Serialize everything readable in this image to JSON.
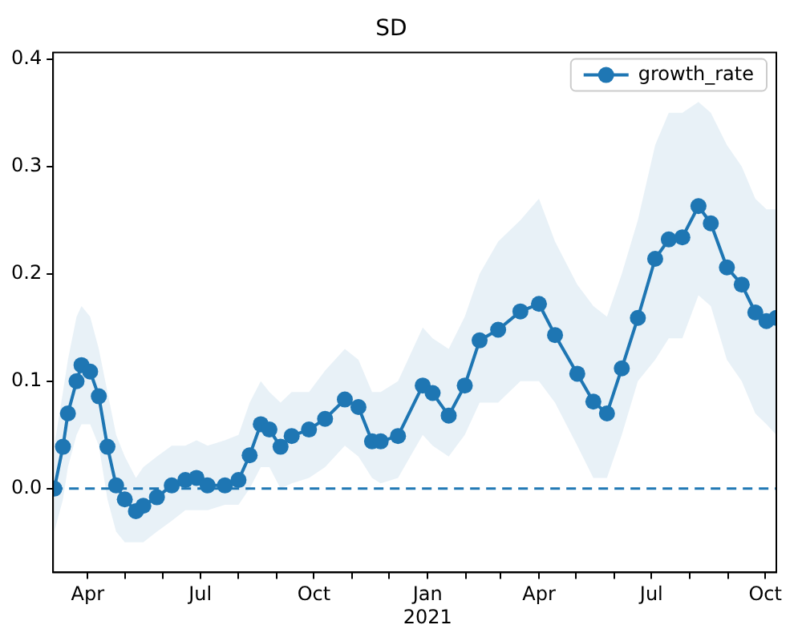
{
  "chart_data": {
    "type": "line",
    "title": "SD",
    "x": [
      "2020-03-05",
      "2020-03-12",
      "2020-03-16",
      "2020-03-23",
      "2020-03-27",
      "2020-04-03",
      "2020-04-10",
      "2020-04-17",
      "2020-04-24",
      "2020-05-01",
      "2020-05-10",
      "2020-05-16",
      "2020-05-27",
      "2020-06-08",
      "2020-06-19",
      "2020-06-28",
      "2020-07-07",
      "2020-07-21",
      "2020-08-01",
      "2020-08-10",
      "2020-08-19",
      "2020-08-26",
      "2020-09-04",
      "2020-09-13",
      "2020-09-27",
      "2020-10-10",
      "2020-10-26",
      "2020-11-06",
      "2020-11-17",
      "2020-11-24",
      "2020-12-08",
      "2020-12-28",
      "2021-01-05",
      "2021-01-18",
      "2021-01-31",
      "2021-02-12",
      "2021-02-27",
      "2021-03-17",
      "2021-04-01",
      "2021-04-14",
      "2021-05-02",
      "2021-05-15",
      "2021-05-26",
      "2021-06-07",
      "2021-06-20",
      "2021-07-04",
      "2021-07-15",
      "2021-07-26",
      "2021-08-08",
      "2021-08-18",
      "2021-08-31",
      "2021-09-12",
      "2021-09-23",
      "2021-10-02",
      "2021-10-10"
    ],
    "series": [
      {
        "name": "growth_rate",
        "color": "#1f77b4",
        "values": [
          0.0,
          0.039,
          0.07,
          0.1,
          0.115,
          0.109,
          0.086,
          0.039,
          0.003,
          -0.01,
          -0.021,
          -0.016,
          -0.008,
          0.003,
          0.008,
          0.01,
          0.003,
          0.003,
          0.008,
          0.031,
          0.06,
          0.055,
          0.039,
          0.049,
          0.055,
          0.065,
          0.083,
          0.076,
          0.044,
          0.044,
          0.049,
          0.096,
          0.089,
          0.068,
          0.096,
          0.138,
          0.148,
          0.165,
          0.172,
          0.143,
          0.107,
          0.081,
          0.07,
          0.112,
          0.159,
          0.214,
          0.232,
          0.234,
          0.263,
          0.247,
          0.206,
          0.19,
          0.164,
          0.156,
          0.159
        ],
        "lower": [
          -0.04,
          -0.01,
          0.02,
          0.05,
          0.06,
          0.06,
          0.04,
          -0.01,
          -0.04,
          -0.05,
          -0.05,
          -0.05,
          -0.04,
          -0.03,
          -0.02,
          -0.02,
          -0.02,
          -0.015,
          -0.015,
          0.0,
          0.02,
          0.02,
          0.0,
          0.005,
          0.01,
          0.02,
          0.04,
          0.03,
          0.01,
          0.005,
          0.01,
          0.05,
          0.04,
          0.03,
          0.05,
          0.08,
          0.08,
          0.1,
          0.1,
          0.08,
          0.04,
          0.01,
          0.01,
          0.05,
          0.1,
          0.12,
          0.14,
          0.14,
          0.18,
          0.17,
          0.12,
          0.1,
          0.07,
          0.06,
          0.05
        ],
        "upper": [
          0.04,
          0.09,
          0.12,
          0.16,
          0.17,
          0.16,
          0.13,
          0.09,
          0.05,
          0.03,
          0.01,
          0.02,
          0.03,
          0.04,
          0.04,
          0.045,
          0.04,
          0.045,
          0.05,
          0.08,
          0.1,
          0.09,
          0.08,
          0.09,
          0.09,
          0.11,
          0.13,
          0.12,
          0.09,
          0.09,
          0.1,
          0.15,
          0.14,
          0.13,
          0.16,
          0.2,
          0.23,
          0.25,
          0.27,
          0.23,
          0.19,
          0.17,
          0.16,
          0.2,
          0.25,
          0.32,
          0.35,
          0.35,
          0.36,
          0.35,
          0.32,
          0.3,
          0.27,
          0.26,
          0.26
        ]
      }
    ],
    "xlim": [
      "2020-03-04",
      "2021-10-10"
    ],
    "xticks": [
      {
        "value": "2020-04-01",
        "label": "Apr"
      },
      {
        "value": "2020-05-01",
        "label": null
      },
      {
        "value": "2020-06-01",
        "label": null
      },
      {
        "value": "2020-07-01",
        "label": "Jul"
      },
      {
        "value": "2020-08-01",
        "label": null
      },
      {
        "value": "2020-09-01",
        "label": null
      },
      {
        "value": "2020-10-01",
        "label": "Oct"
      },
      {
        "value": "2020-11-01",
        "label": null
      },
      {
        "value": "2020-12-01",
        "label": null
      },
      {
        "value": "2021-01-01",
        "label": "Jan\n2021"
      },
      {
        "value": "2021-02-01",
        "label": null
      },
      {
        "value": "2021-03-01",
        "label": null
      },
      {
        "value": "2021-04-01",
        "label": "Apr"
      },
      {
        "value": "2021-05-01",
        "label": null
      },
      {
        "value": "2021-06-01",
        "label": null
      },
      {
        "value": "2021-07-01",
        "label": "Jul"
      },
      {
        "value": "2021-08-01",
        "label": null
      },
      {
        "value": "2021-09-01",
        "label": null
      },
      {
        "value": "2021-10-01",
        "label": "Oct"
      }
    ],
    "ylim": [
      -0.078,
      0.406
    ],
    "yticks": [
      {
        "value": 0,
        "label": "0.0"
      },
      {
        "value": 0.1,
        "label": "0.1"
      },
      {
        "value": 0.2,
        "label": "0.2"
      },
      {
        "value": 0.3,
        "label": "0.3"
      },
      {
        "value": 0.4,
        "label": "0.4"
      }
    ],
    "ref_lines": [
      {
        "axis": "y",
        "value": 0,
        "color": "#1f77b4",
        "line_style": "dashed"
      }
    ],
    "grid": false,
    "legend": "top right",
    "marker": "circle",
    "line_style": "solid"
  }
}
